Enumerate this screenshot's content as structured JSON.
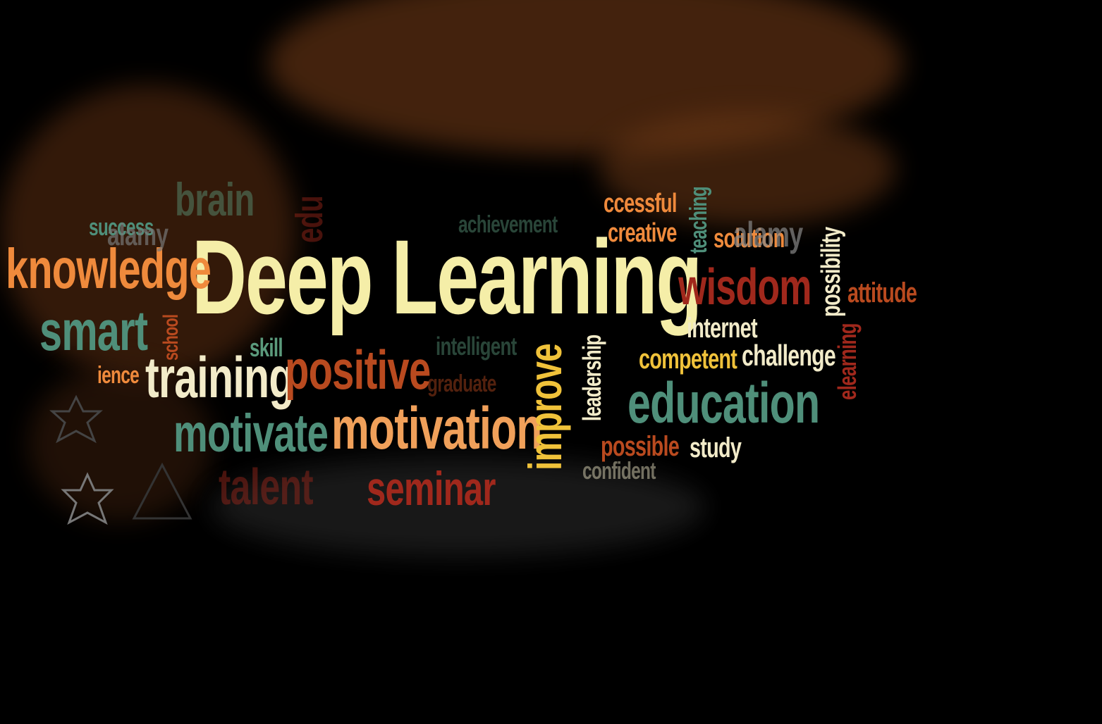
{
  "title": "Deep Learning",
  "words": [
    {
      "key": "knowledge",
      "text": "knowledge"
    },
    {
      "key": "smart",
      "text": "smart"
    },
    {
      "key": "training",
      "text": "training"
    },
    {
      "key": "motivate",
      "text": "motivate"
    },
    {
      "key": "talent",
      "text": "talent"
    },
    {
      "key": "positive",
      "text": "positive"
    },
    {
      "key": "motivation",
      "text": "motivation"
    },
    {
      "key": "seminar",
      "text": "seminar"
    },
    {
      "key": "improve",
      "text": "improve"
    },
    {
      "key": "leadership",
      "text": "leadership"
    },
    {
      "key": "wisdom",
      "text": "wisdom"
    },
    {
      "key": "internet",
      "text": "internet"
    },
    {
      "key": "competent",
      "text": "competent"
    },
    {
      "key": "challenge",
      "text": "challenge"
    },
    {
      "key": "education",
      "text": "education"
    },
    {
      "key": "possible",
      "text": "possible"
    },
    {
      "key": "study",
      "text": "study"
    },
    {
      "key": "attitude",
      "text": "attitude"
    },
    {
      "key": "possibility",
      "text": "possibility"
    },
    {
      "key": "elearning",
      "text": "elearning"
    },
    {
      "key": "solution",
      "text": "solution"
    },
    {
      "key": "alamy",
      "text": "alamy"
    },
    {
      "key": "teaching",
      "text": "teaching"
    },
    {
      "key": "creative",
      "text": "creative"
    },
    {
      "key": "successful",
      "text": "ccessful"
    },
    {
      "key": "achievement",
      "text": "achievement"
    },
    {
      "key": "brain",
      "text": "brain"
    },
    {
      "key": "success",
      "text": "success"
    },
    {
      "key": "alamy2",
      "text": "alamy"
    },
    {
      "key": "school",
      "text": "school"
    },
    {
      "key": "skill",
      "text": "skill"
    },
    {
      "key": "science",
      "text": "ience"
    },
    {
      "key": "intelligent",
      "text": "intelligent"
    },
    {
      "key": "graduate",
      "text": "graduate"
    },
    {
      "key": "confident",
      "text": "confident"
    },
    {
      "key": "education2",
      "text": "edu"
    }
  ],
  "colors": {
    "orange": "#ef8a3c",
    "cream": "#f5eea8",
    "green": "#5b9a7c",
    "teal": "#4f8f7a",
    "red": "#a0281c",
    "rust": "#b94a1f",
    "yellow": "#f0c23a",
    "light": "#f2ebc9",
    "dust": "#8a4a1e"
  },
  "icons": [
    "star-icon",
    "star-icon",
    "triangle-icon"
  ]
}
